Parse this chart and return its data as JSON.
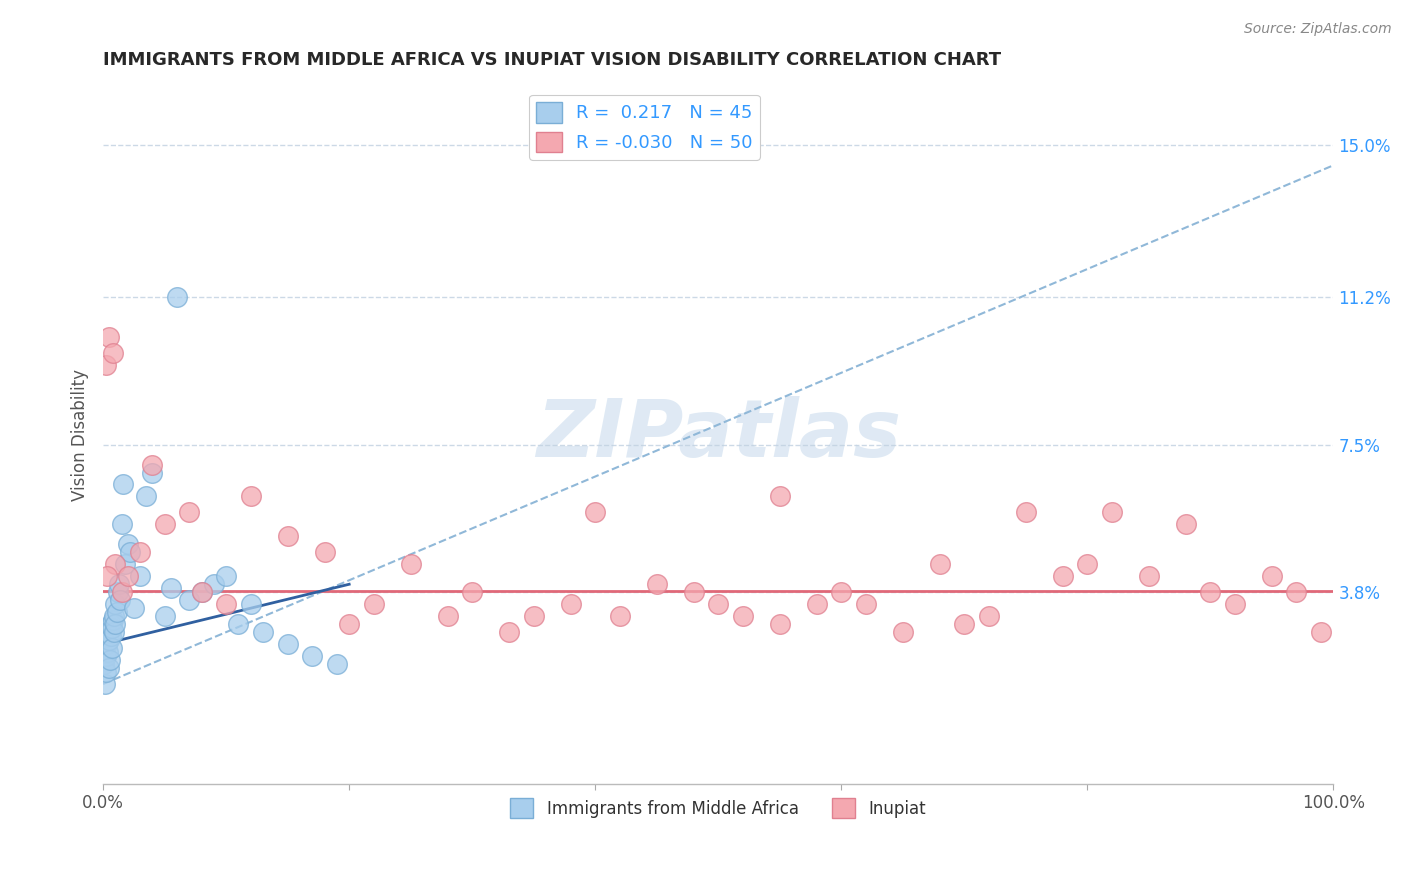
{
  "title": "IMMIGRANTS FROM MIDDLE AFRICA VS INUPIAT VISION DISABILITY CORRELATION CHART",
  "source": "Source: ZipAtlas.com",
  "ylabel": "Vision Disability",
  "r_blue": 0.217,
  "n_blue": 45,
  "r_pink": -0.03,
  "n_pink": 50,
  "xlim": [
    0.0,
    100.0
  ],
  "ylim": [
    -1.0,
    16.5
  ],
  "yticks": [
    3.8,
    7.5,
    11.2,
    15.0
  ],
  "ytick_labels": [
    "3.8%",
    "7.5%",
    "11.2%",
    "15.0%"
  ],
  "xtick_labels": [
    "0.0%",
    "100.0%"
  ],
  "legend_labels": [
    "Immigrants from Middle Africa",
    "Inupiat"
  ],
  "blue_color": "#A8CEED",
  "pink_color": "#F4A8B0",
  "blue_edge": "#7AAED6",
  "pink_edge": "#E08090",
  "trend_blue_solid": "#3060A0",
  "trend_pink_solid": "#E06878",
  "trend_blue_dashed": "#90B8D8",
  "background": "#FFFFFF",
  "grid_color": "#C0D0E0",
  "title_color": "#282828",
  "watermark": "ZIPatlas",
  "blue_scatter_x": [
    0.1,
    0.15,
    0.2,
    0.25,
    0.3,
    0.35,
    0.4,
    0.45,
    0.5,
    0.55,
    0.6,
    0.65,
    0.7,
    0.75,
    0.8,
    0.85,
    0.9,
    0.95,
    1.0,
    1.1,
    1.2,
    1.3,
    1.4,
    1.5,
    1.6,
    1.8,
    2.0,
    2.2,
    2.5,
    3.0,
    3.5,
    4.0,
    5.0,
    6.0,
    7.0,
    8.0,
    9.0,
    10.0,
    11.0,
    12.0,
    13.0,
    15.0,
    17.0,
    19.0,
    5.5
  ],
  "blue_scatter_y": [
    2.0,
    1.5,
    1.8,
    2.2,
    2.5,
    2.8,
    2.3,
    1.9,
    2.6,
    2.1,
    2.7,
    3.0,
    2.9,
    2.4,
    3.1,
    2.8,
    3.2,
    3.0,
    3.5,
    3.3,
    3.8,
    4.0,
    3.6,
    5.5,
    6.5,
    4.5,
    5.0,
    4.8,
    3.4,
    4.2,
    6.2,
    6.8,
    3.2,
    11.2,
    3.6,
    3.8,
    4.0,
    4.2,
    3.0,
    3.5,
    2.8,
    2.5,
    2.2,
    2.0,
    3.9
  ],
  "pink_scatter_x": [
    0.2,
    0.5,
    1.0,
    1.5,
    2.0,
    3.0,
    5.0,
    7.0,
    8.0,
    10.0,
    12.0,
    15.0,
    18.0,
    20.0,
    22.0,
    25.0,
    28.0,
    30.0,
    33.0,
    35.0,
    38.0,
    40.0,
    42.0,
    45.0,
    48.0,
    50.0,
    52.0,
    55.0,
    58.0,
    60.0,
    62.0,
    65.0,
    68.0,
    70.0,
    72.0,
    75.0,
    78.0,
    80.0,
    82.0,
    85.0,
    88.0,
    90.0,
    92.0,
    95.0,
    97.0,
    99.0,
    0.3,
    0.8,
    4.0,
    55.0
  ],
  "pink_scatter_y": [
    9.5,
    10.2,
    4.5,
    3.8,
    4.2,
    4.8,
    5.5,
    5.8,
    3.8,
    3.5,
    6.2,
    5.2,
    4.8,
    3.0,
    3.5,
    4.5,
    3.2,
    3.8,
    2.8,
    3.2,
    3.5,
    5.8,
    3.2,
    4.0,
    3.8,
    3.5,
    3.2,
    3.0,
    3.5,
    3.8,
    3.5,
    2.8,
    4.5,
    3.0,
    3.2,
    5.8,
    4.2,
    4.5,
    5.8,
    4.2,
    5.5,
    3.8,
    3.5,
    4.2,
    3.8,
    2.8,
    4.2,
    9.8,
    7.0,
    6.2
  ],
  "blue_trend_x0": 0.0,
  "blue_trend_y0": 2.5,
  "blue_trend_x1": 20.0,
  "blue_trend_y1": 4.0,
  "pink_trend_y": 3.82,
  "dashed_x0": 0.0,
  "dashed_y0": 1.5,
  "dashed_x1": 100.0,
  "dashed_y1": 14.5
}
